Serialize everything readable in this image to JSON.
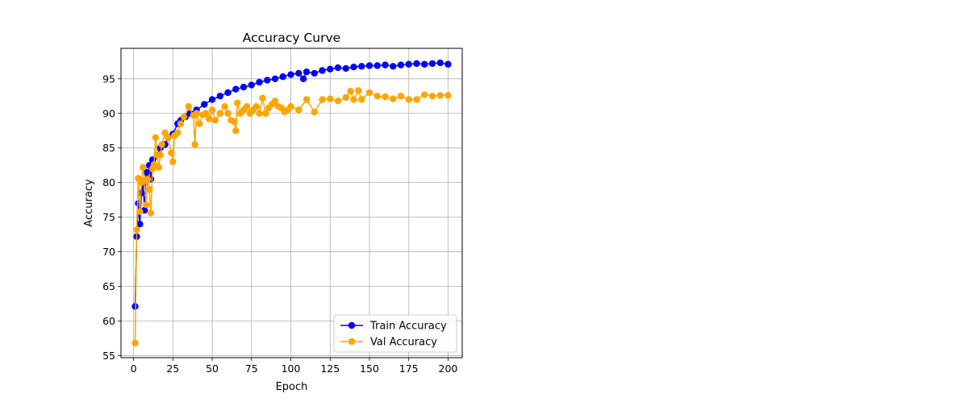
{
  "chart_data": {
    "type": "line",
    "title": "Accuracy Curve",
    "xlabel": "Epoch",
    "ylabel": "Accuracy",
    "xlim": [
      -8,
      209
    ],
    "ylim": [
      54.7,
      99.4
    ],
    "xticks": [
      0,
      25,
      50,
      75,
      100,
      125,
      150,
      175,
      200
    ],
    "yticks": [
      55,
      60,
      65,
      70,
      75,
      80,
      85,
      90,
      95
    ],
    "grid": true,
    "legend_position": "lower-right",
    "series": [
      {
        "name": "Train Accuracy",
        "color": "#0000ff",
        "x": [
          1,
          2,
          3,
          4,
          5,
          6,
          7,
          8,
          9,
          10,
          11,
          12,
          13,
          15,
          17,
          20,
          22,
          25,
          28,
          30,
          33,
          36,
          40,
          45,
          50,
          55,
          60,
          65,
          70,
          75,
          80,
          85,
          90,
          95,
          100,
          105,
          108,
          110,
          115,
          120,
          125,
          130,
          135,
          140,
          145,
          150,
          155,
          160,
          165,
          170,
          175,
          180,
          185,
          190,
          195,
          200
        ],
        "values": [
          62.1,
          72.2,
          77.0,
          74.0,
          78.5,
          80.0,
          76.0,
          81.5,
          80.5,
          82.5,
          80.5,
          83.3,
          82.5,
          84.0,
          85.0,
          85.5,
          86.5,
          87.0,
          88.5,
          89.0,
          89.5,
          90.0,
          90.5,
          91.3,
          92.0,
          92.5,
          93.0,
          93.5,
          93.8,
          94.1,
          94.5,
          94.8,
          95.0,
          95.3,
          95.6,
          95.8,
          95.0,
          96.0,
          95.8,
          96.2,
          96.4,
          96.6,
          96.5,
          96.7,
          96.8,
          96.9,
          96.9,
          97.0,
          96.8,
          97.0,
          97.1,
          97.2,
          97.1,
          97.2,
          97.3,
          97.1
        ]
      },
      {
        "name": "Val Accuracy",
        "color": "#ffa500",
        "x": [
          1,
          2,
          3,
          4,
          5,
          6,
          7,
          8,
          9,
          10,
          11,
          12,
          13,
          14,
          15,
          16,
          17,
          18,
          20,
          22,
          24,
          25,
          26,
          28,
          30,
          32,
          35,
          38,
          39,
          40,
          42,
          44,
          46,
          48,
          50,
          52,
          55,
          58,
          60,
          62,
          64,
          65,
          66,
          68,
          70,
          72,
          74,
          76,
          78,
          80,
          82,
          84,
          86,
          88,
          90,
          92,
          94,
          96,
          98,
          100,
          105,
          110,
          115,
          120,
          125,
          130,
          135,
          138,
          140,
          143,
          145,
          150,
          155,
          160,
          165,
          170,
          175,
          180,
          185,
          190,
          195,
          200
        ],
        "values": [
          56.8,
          73.2,
          80.6,
          75.8,
          80.0,
          82.2,
          80.3,
          76.8,
          80.5,
          79.0,
          75.6,
          82.0,
          82.6,
          86.5,
          84.0,
          82.2,
          84.0,
          85.5,
          87.2,
          86.5,
          84.3,
          83.0,
          86.8,
          87.2,
          88.5,
          89.5,
          91.0,
          89.7,
          85.5,
          90.0,
          88.5,
          89.8,
          90.0,
          89.2,
          90.5,
          89.0,
          90.0,
          91.0,
          90.0,
          89.0,
          88.8,
          87.5,
          91.5,
          90.0,
          90.5,
          91.0,
          90.0,
          90.5,
          91.0,
          90.0,
          92.2,
          90.0,
          90.8,
          91.3,
          91.8,
          91.0,
          90.8,
          90.2,
          90.5,
          91.0,
          90.5,
          92.0,
          90.2,
          92.0,
          92.1,
          91.8,
          92.3,
          93.2,
          92.0,
          93.3,
          92.0,
          93.0,
          92.5,
          92.4,
          92.1,
          92.5,
          92.0,
          92.0,
          92.7,
          92.5,
          92.6,
          92.6
        ]
      }
    ]
  }
}
